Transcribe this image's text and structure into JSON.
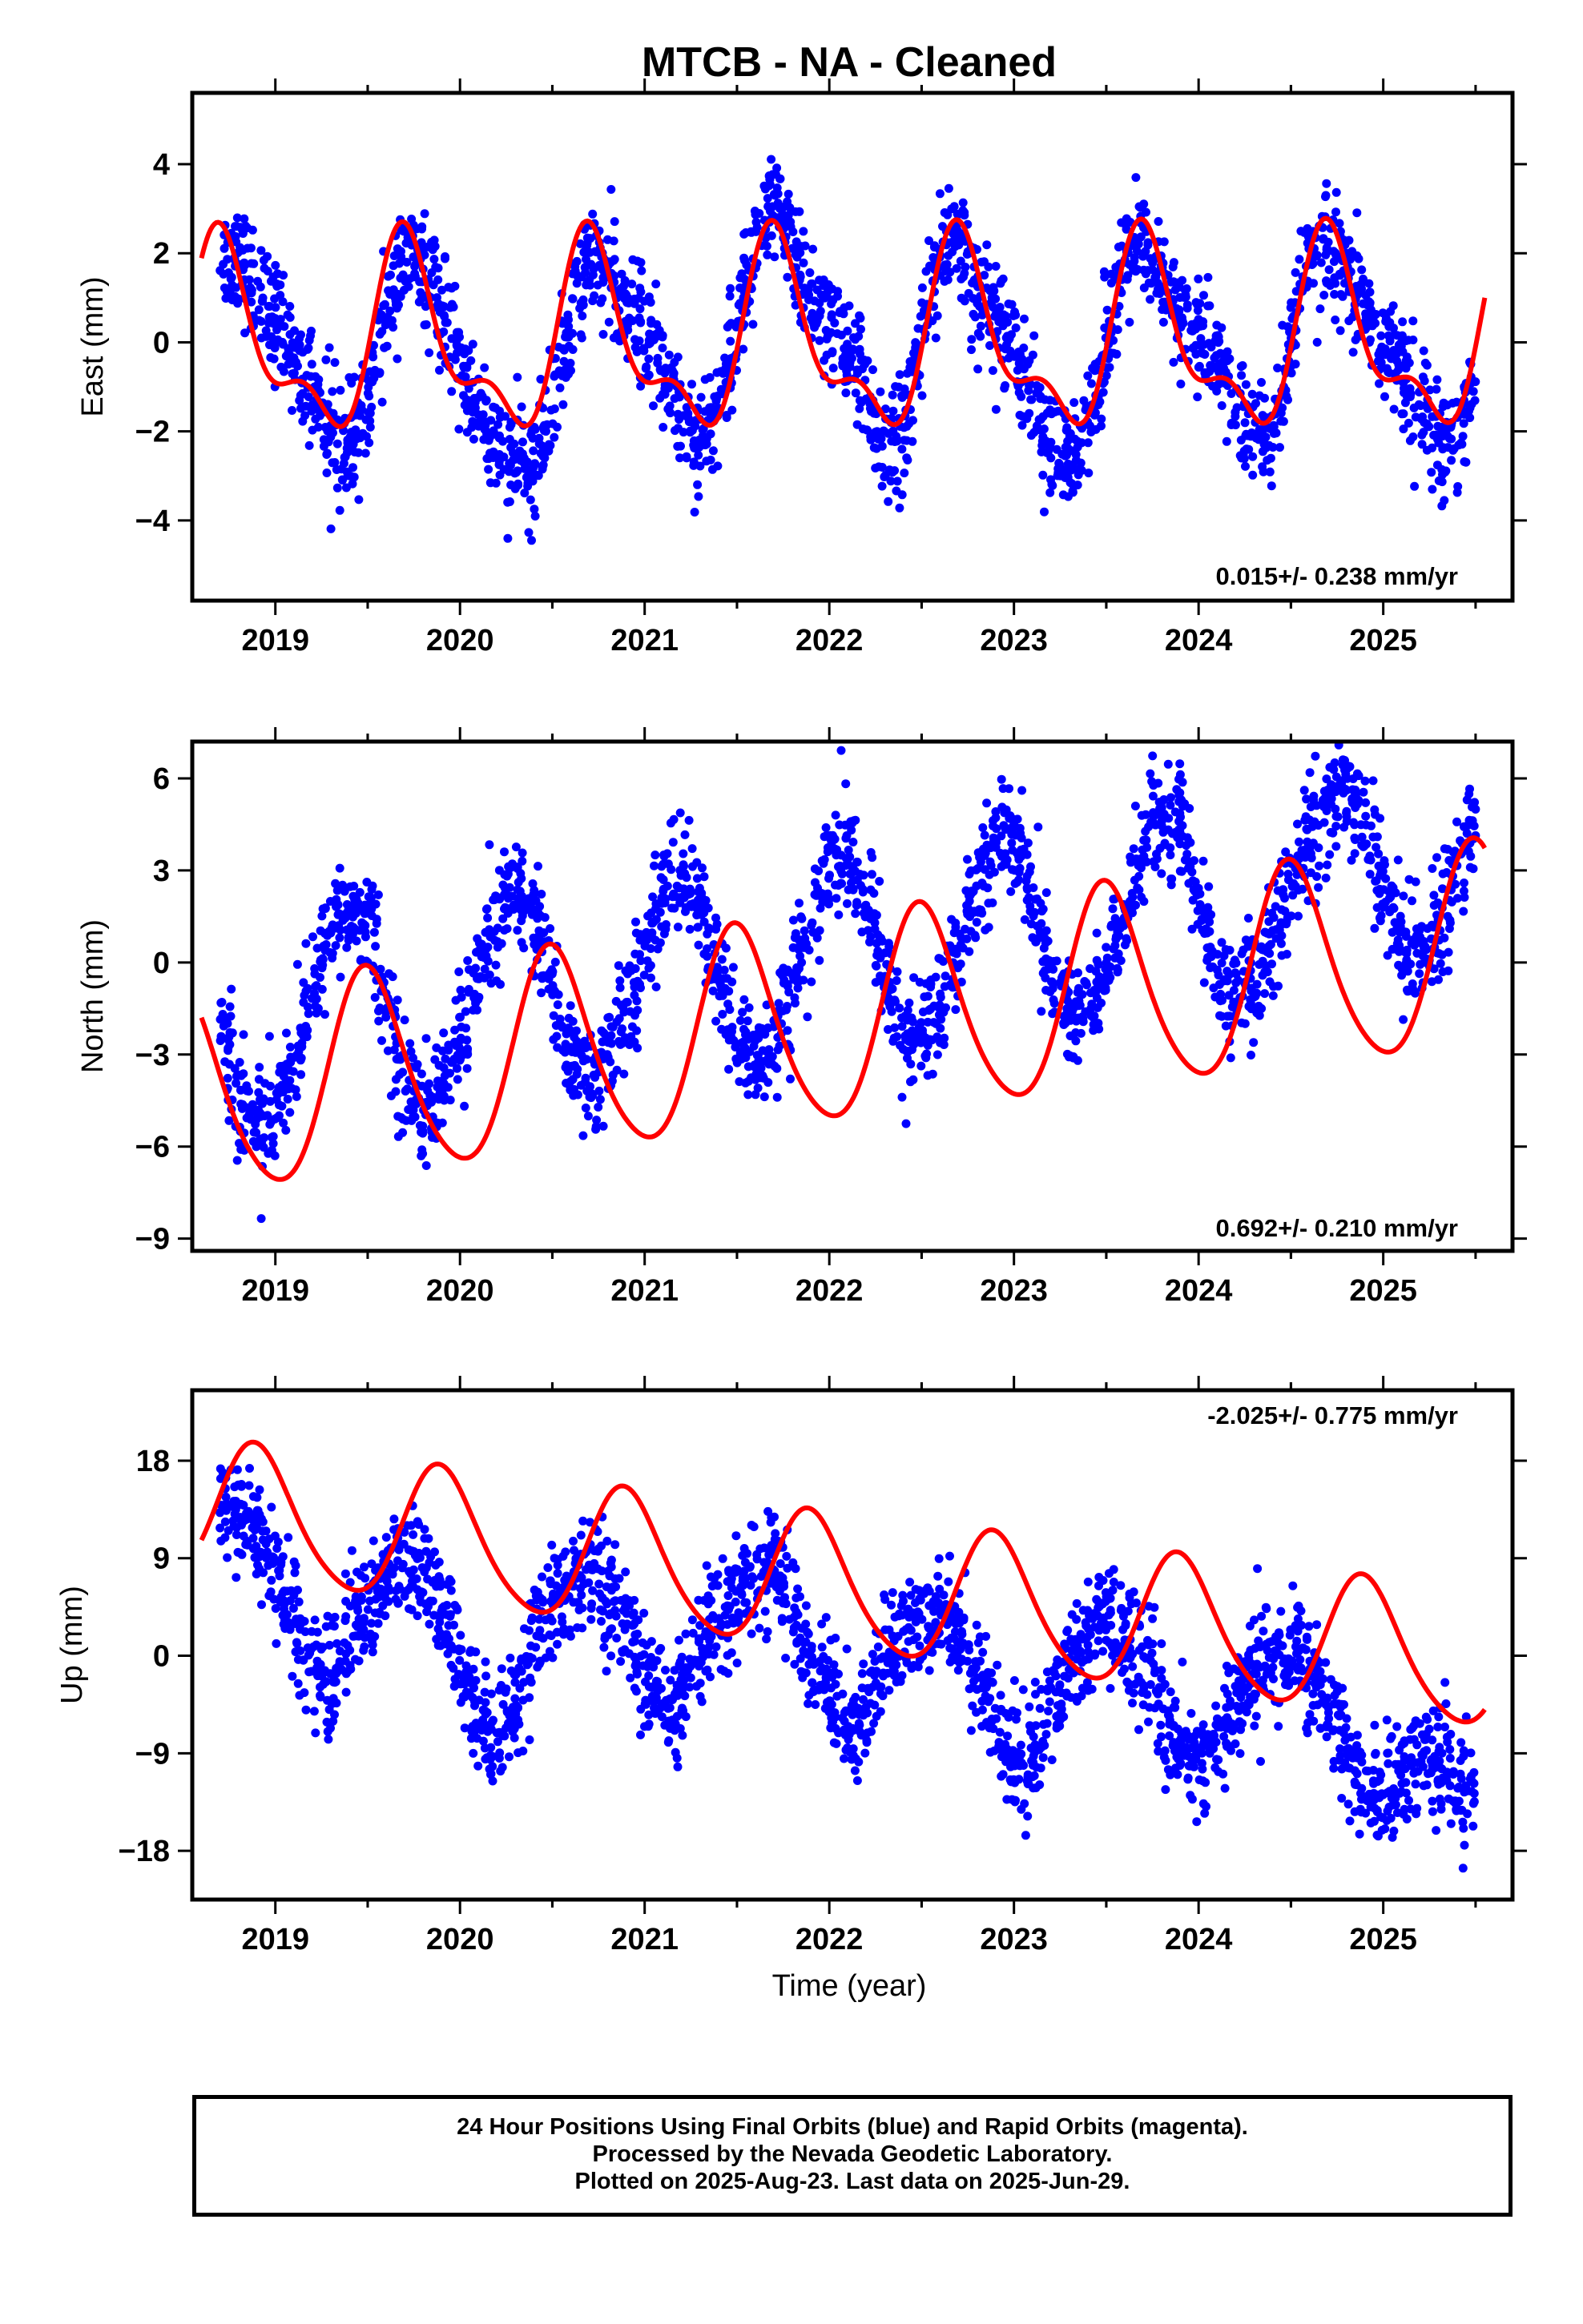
{
  "title": "MTCB  - NA - Cleaned",
  "xlabel": "Time (year)",
  "footer": {
    "line1": "24 Hour Positions Using Final Orbits (blue) and Rapid Orbits (magenta).",
    "line2": "Processed by the Nevada Geodetic Laboratory.",
    "line3": "Plotted on 2025-Aug-23. Last data on 2025-Jun-29."
  },
  "colors": {
    "points": "#0000ff",
    "model": "#ff0000",
    "axes": "#000000"
  },
  "chart_data": [
    {
      "type": "scatter",
      "panel": "east",
      "ylabel": "East (mm)",
      "rate_label": "0.015+/- 0.238 mm/yr",
      "xlim": [
        2018.55,
        2025.7
      ],
      "ylim": [
        -5.8,
        5.6
      ],
      "xticks": [
        2019,
        2020,
        2021,
        2022,
        2023,
        2024,
        2025
      ],
      "yticks": [
        -4,
        -2,
        0,
        2,
        4
      ],
      "series": [
        {
          "kind": "points",
          "x": [
            2018.7,
            2018.8,
            2018.9,
            2019.0,
            2019.1,
            2019.2,
            2019.3,
            2019.4,
            2019.5,
            2019.6,
            2019.7,
            2019.8,
            2019.9,
            2020.0,
            2020.1,
            2020.2,
            2020.3,
            2020.4,
            2020.5,
            2020.6,
            2020.7,
            2020.8,
            2020.9,
            2021.0,
            2021.1,
            2021.2,
            2021.3,
            2021.4,
            2021.5,
            2021.6,
            2021.7,
            2021.8,
            2021.9,
            2022.0,
            2022.1,
            2022.2,
            2022.3,
            2022.4,
            2022.5,
            2022.6,
            2022.7,
            2022.8,
            2022.9,
            2023.0,
            2023.1,
            2023.2,
            2023.3,
            2023.4,
            2023.5,
            2023.6,
            2023.7,
            2023.8,
            2023.9,
            2024.0,
            2024.1,
            2024.2,
            2024.3,
            2024.4,
            2024.5,
            2024.6,
            2024.7,
            2024.8,
            2024.9,
            2025.0,
            2025.1,
            2025.2,
            2025.3,
            2025.4,
            2025.5
          ],
          "y": [
            1.8,
            2.0,
            1.2,
            0.4,
            -0.2,
            -1.0,
            -2.0,
            -2.5,
            -1.4,
            0.6,
            2.0,
            1.6,
            0.6,
            -0.4,
            -1.6,
            -2.5,
            -2.7,
            -2.8,
            -1.5,
            0.5,
            2.0,
            1.6,
            0.8,
            0.2,
            -0.6,
            -1.6,
            -2.2,
            -1.5,
            0.4,
            2.3,
            3.1,
            2.0,
            0.8,
            0.4,
            -0.2,
            -1.2,
            -2.4,
            -2.0,
            0.2,
            2.0,
            2.1,
            1.2,
            0.6,
            0.0,
            -1.2,
            -2.4,
            -2.8,
            -2.0,
            0.2,
            2.0,
            2.0,
            1.2,
            0.6,
            0.2,
            -0.4,
            -1.4,
            -2.3,
            -2.1,
            0.0,
            1.8,
            2.0,
            1.4,
            0.6,
            0.0,
            -0.6,
            -1.4,
            -2.0,
            -2.2,
            -0.8
          ]
        },
        {
          "kind": "model",
          "amp": 1.9,
          "amp2": 0.9,
          "phase_peak": 0.72,
          "offset": 0.0,
          "rate": 0.015
        }
      ]
    },
    {
      "type": "scatter",
      "panel": "north",
      "ylabel": "North (mm)",
      "rate_label": "0.692+/- 0.210 mm/yr",
      "xlim": [
        2018.55,
        2025.7
      ],
      "ylim": [
        -9.4,
        7.2
      ],
      "xticks": [
        2019,
        2020,
        2021,
        2022,
        2023,
        2024,
        2025
      ],
      "yticks": [
        -9,
        -6,
        -3,
        0,
        3,
        6
      ],
      "series": [
        {
          "kind": "points",
          "x": [
            2018.7,
            2018.8,
            2018.9,
            2019.0,
            2019.1,
            2019.2,
            2019.3,
            2019.4,
            2019.5,
            2019.6,
            2019.7,
            2019.8,
            2019.9,
            2020.0,
            2020.1,
            2020.2,
            2020.3,
            2020.4,
            2020.5,
            2020.6,
            2020.7,
            2020.8,
            2020.9,
            2021.0,
            2021.1,
            2021.2,
            2021.3,
            2021.4,
            2021.5,
            2021.6,
            2021.7,
            2021.8,
            2021.9,
            2022.0,
            2022.1,
            2022.2,
            2022.3,
            2022.4,
            2022.5,
            2022.6,
            2022.7,
            2022.8,
            2022.9,
            2023.0,
            2023.1,
            2023.2,
            2023.3,
            2023.4,
            2023.5,
            2023.6,
            2023.7,
            2023.8,
            2023.9,
            2024.0,
            2024.1,
            2024.2,
            2024.3,
            2024.4,
            2024.5,
            2024.6,
            2024.7,
            2024.8,
            2024.9,
            2025.0,
            2025.1,
            2025.2,
            2025.3,
            2025.4,
            2025.5
          ],
          "y": [
            -1.5,
            -4.2,
            -5.4,
            -4.8,
            -3.0,
            -0.8,
            1.0,
            1.8,
            1.2,
            -1.2,
            -3.8,
            -4.8,
            -4.2,
            -2.6,
            -0.6,
            1.4,
            2.4,
            1.6,
            -0.8,
            -3.0,
            -3.8,
            -3.2,
            -1.8,
            0.2,
            2.2,
            3.0,
            1.8,
            -0.6,
            -2.6,
            -3.2,
            -2.4,
            -0.8,
            1.4,
            3.2,
            3.6,
            2.0,
            -0.4,
            -2.4,
            -2.4,
            -1.4,
            0.4,
            2.6,
            4.0,
            4.2,
            2.2,
            -0.4,
            -1.8,
            -1.6,
            -0.6,
            1.6,
            3.8,
            5.0,
            4.4,
            2.0,
            -0.4,
            -1.2,
            -0.8,
            0.6,
            2.4,
            4.0,
            5.2,
            5.6,
            4.8,
            2.6,
            0.4,
            0.2,
            1.0,
            3.0,
            4.8
          ]
        },
        {
          "kind": "model",
          "amp": 3.3,
          "amp2": 0.4,
          "phase_peak": 0.5,
          "offset": -2.0,
          "rate": 0.692
        }
      ]
    },
    {
      "type": "scatter",
      "panel": "up",
      "ylabel": "Up (mm)",
      "rate_label": "-2.025+/- 0.775 mm/yr",
      "xlim": [
        2018.55,
        2025.7
      ],
      "ylim": [
        -22.5,
        24.5
      ],
      "xticks": [
        2019,
        2020,
        2021,
        2022,
        2023,
        2024,
        2025
      ],
      "yticks": [
        -18,
        -9,
        0,
        9,
        18
      ],
      "series": [
        {
          "kind": "points",
          "x": [
            2018.7,
            2018.8,
            2018.9,
            2019.0,
            2019.1,
            2019.2,
            2019.3,
            2019.4,
            2019.5,
            2019.6,
            2019.7,
            2019.8,
            2019.9,
            2020.0,
            2020.1,
            2020.2,
            2020.3,
            2020.4,
            2020.5,
            2020.6,
            2020.7,
            2020.8,
            2020.9,
            2021.0,
            2021.1,
            2021.2,
            2021.3,
            2021.4,
            2021.5,
            2021.6,
            2021.7,
            2021.8,
            2021.9,
            2022.0,
            2022.1,
            2022.2,
            2022.3,
            2022.4,
            2022.5,
            2022.6,
            2022.7,
            2022.8,
            2022.9,
            2023.0,
            2023.1,
            2023.2,
            2023.3,
            2023.4,
            2023.5,
            2023.6,
            2023.7,
            2023.8,
            2023.9,
            2024.0,
            2024.1,
            2024.2,
            2024.3,
            2024.4,
            2024.5,
            2024.6,
            2024.7,
            2024.8,
            2024.9,
            2025.0,
            2025.1,
            2025.2,
            2025.3,
            2025.4,
            2025.5
          ],
          "y": [
            14.0,
            12.5,
            12.0,
            8.0,
            3.0,
            -1.0,
            -2.0,
            2.0,
            5.0,
            7.0,
            8.5,
            7.5,
            4.0,
            0.0,
            -6.0,
            -7.0,
            -4.0,
            1.0,
            5.0,
            6.5,
            7.5,
            6.0,
            3.0,
            -2.0,
            -5.0,
            -4.0,
            0.0,
            3.0,
            6.0,
            7.5,
            8.0,
            5.0,
            -1.0,
            -3.0,
            -6.0,
            -5.0,
            -1.0,
            2.0,
            4.0,
            4.5,
            2.5,
            -1.0,
            -7.0,
            -10.0,
            -9.0,
            -5.0,
            -1.0,
            1.5,
            3.0,
            2.0,
            -1.0,
            -4.0,
            -9.0,
            -10.0,
            -8.0,
            -5.0,
            -1.5,
            0.0,
            0.5,
            -2.0,
            -5.0,
            -9.0,
            -12.0,
            -13.0,
            -11.0,
            -9.0,
            -10.0,
            -12.0,
            -12.0
          ]
        },
        {
          "kind": "model",
          "amp": 6.2,
          "amp2": 0.8,
          "phase_peak": 0.9,
          "offset": 6.5,
          "rate": -2.025
        }
      ]
    }
  ]
}
